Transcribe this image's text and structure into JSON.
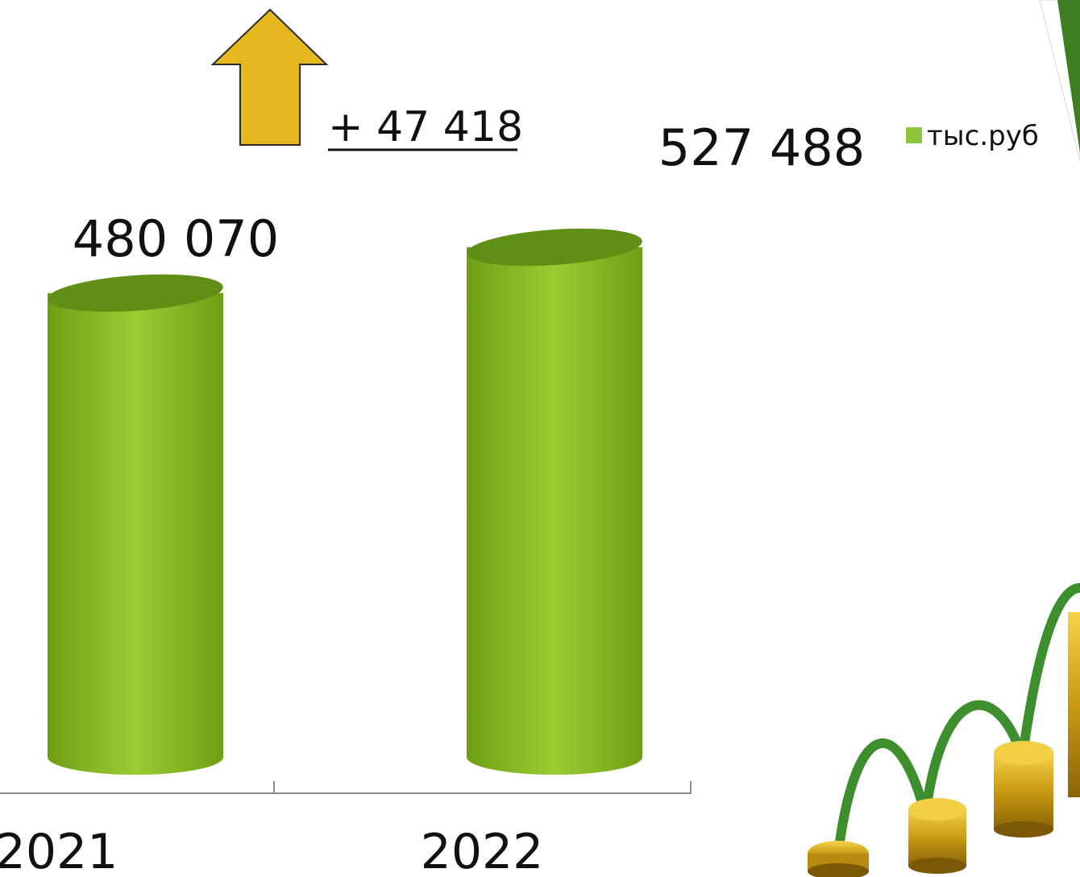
{
  "chart_data": {
    "type": "bar",
    "categories": [
      "2021",
      "2022"
    ],
    "series": [
      {
        "name": "тыс.руб",
        "values": [
          480070,
          527488
        ]
      }
    ],
    "data_labels": [
      "480 070",
      "527 488"
    ],
    "annotation": "+ 47 418",
    "legend_position": "top-right",
    "grid": false,
    "colors": {
      "bar_light": "#9acd32",
      "bar_dark": "#5f8f14",
      "legend_swatch": "#8cc63f",
      "arrow_fill": "#e6b820",
      "arrow_stroke": "#2b2b2b"
    }
  },
  "decoration": {
    "coins_icon": "growing-coin-stacks-icon",
    "corner_icon": "green-triangle-corner-icon"
  }
}
